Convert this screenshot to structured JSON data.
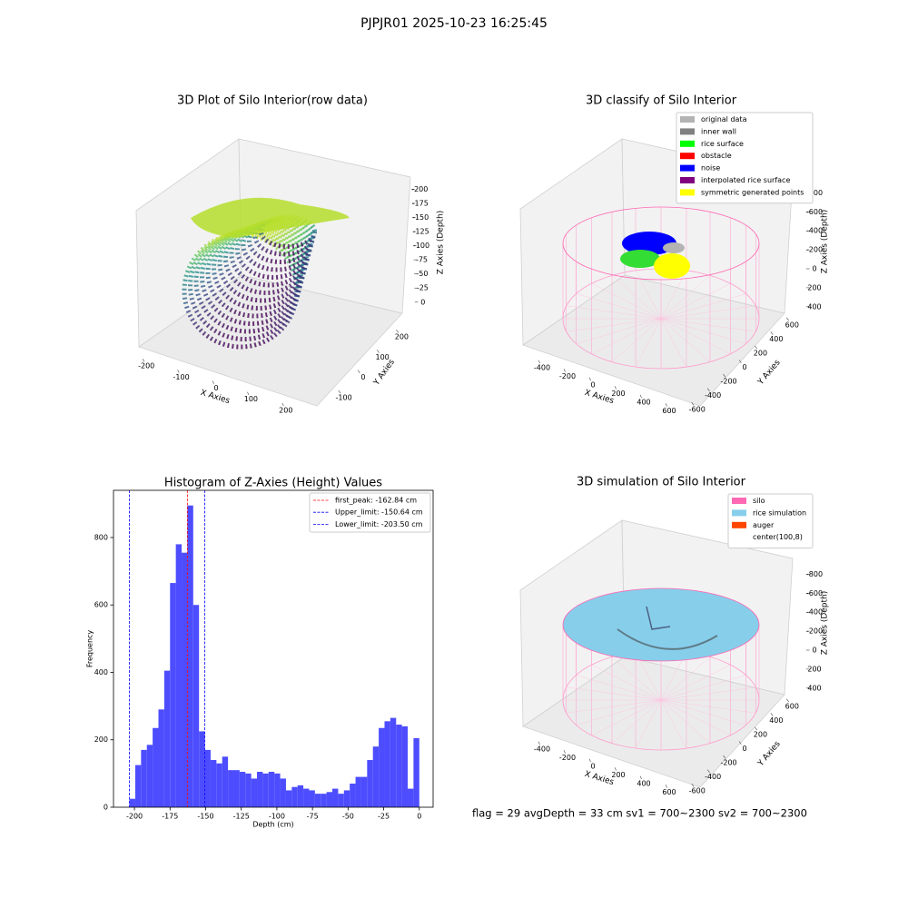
{
  "title": "PJPJR01 2025-10-23 16:25:45",
  "caption": "flag = 29  avgDepth = 33 cm    sv1 = 700~2300  sv2 = 700~2300",
  "chart_data": [
    {
      "type": "scatter3d",
      "title": "3D Plot of Silo Interior(row data)",
      "xlabel": "X Axies",
      "ylabel": "Y Axies",
      "zlabel": "Z Axies (Depth)",
      "xlim": [
        -250,
        250
      ],
      "xticks": [
        -200,
        -100,
        0,
        100,
        200
      ],
      "ylim": [
        -150,
        250
      ],
      "yticks": [
        -100,
        0,
        100,
        200
      ],
      "zlim": [
        -215,
        10
      ],
      "zticks": [
        0,
        -25,
        -50,
        -75,
        -100,
        -125,
        -150,
        -175,
        -200
      ]
    },
    {
      "type": "scatter3d",
      "title": "3D classify of Silo Interior",
      "xlabel": "X Axies",
      "ylabel": "Y Axies",
      "zlabel": "Z Axies (Depth)",
      "xlim": [
        -500,
        700
      ],
      "xticks": [
        -400,
        -200,
        0,
        200,
        400,
        600
      ],
      "ylim": [
        -700,
        700
      ],
      "yticks": [
        -600,
        -400,
        -200,
        0,
        200,
        400,
        600
      ],
      "zlim": [
        -900,
        450
      ],
      "zticks": [
        400,
        200,
        0,
        -200,
        -400,
        -600,
        -800
      ],
      "series": [
        {
          "name": "original data",
          "color": "#b3b3b3"
        },
        {
          "name": "inner wall",
          "color": "#808080"
        },
        {
          "name": "rice surface",
          "color": "#00ff00"
        },
        {
          "name": "obstacle",
          "color": "#ff0000"
        },
        {
          "name": "noise",
          "color": "#0000ff"
        },
        {
          "name": "interpolated rice surface",
          "color": "#800080"
        },
        {
          "name": "symmetric generated points",
          "color": "#ffff00"
        }
      ]
    },
    {
      "type": "histogram",
      "title": "Histogram of Z-Axies (Height) Values",
      "xlabel": "Depth (cm)",
      "ylabel": "Frequency",
      "color": "#4d4dff",
      "bins": [
        -203.5,
        -199.43,
        -195.36,
        -191.29,
        -187.22,
        -183.15,
        -179.08,
        -175.01,
        -170.94,
        -166.87,
        -162.8,
        -158.73,
        -154.66,
        -150.59,
        -146.52,
        -142.45,
        -138.38,
        -134.31,
        -130.24,
        -126.17,
        -122.1,
        -118.03,
        -113.96,
        -109.89,
        -105.82,
        -101.75,
        -97.68,
        -93.61,
        -89.54,
        -85.47,
        -81.4,
        -77.33,
        -73.26,
        -69.19,
        -65.12,
        -61.05,
        -56.98,
        -52.91,
        -48.84,
        -44.77,
        -40.7,
        -36.63,
        -32.56,
        -28.49,
        -24.42,
        -20.35,
        -16.28,
        -12.21,
        -8.14,
        -4.07,
        0
      ],
      "values": [
        25,
        125,
        170,
        185,
        235,
        290,
        405,
        665,
        780,
        755,
        895,
        600,
        225,
        170,
        140,
        130,
        150,
        110,
        110,
        105,
        100,
        85,
        105,
        100,
        105,
        100,
        85,
        50,
        60,
        65,
        55,
        50,
        40,
        40,
        45,
        55,
        40,
        50,
        70,
        90,
        90,
        140,
        180,
        235,
        255,
        265,
        245,
        240,
        55,
        205
      ],
      "xlim": [
        -214.7,
        9.7
      ],
      "xticks": [
        -200,
        -175,
        -150,
        -125,
        -100,
        -75,
        -50,
        -25,
        0
      ],
      "ylim": [
        0,
        940
      ],
      "yticks": [
        0,
        200,
        400,
        600,
        800
      ],
      "vlines": [
        {
          "label": "first_peak: -162.84 cm",
          "value": -162.84,
          "color": "#ff0000"
        },
        {
          "label": "Upper_limit: -150.64 cm",
          "value": -150.64,
          "color": "#0000ff"
        },
        {
          "label": "Lower_limit: -203.50 cm",
          "value": -203.5,
          "color": "#0000ff"
        }
      ]
    },
    {
      "type": "surface3d",
      "title": "3D simulation of Silo Interior",
      "xlabel": "X Axies",
      "ylabel": "Y Axies",
      "zlabel": "Z Axies (Depth)",
      "xlim": [
        -500,
        700
      ],
      "xticks": [
        -400,
        -200,
        0,
        200,
        400,
        600
      ],
      "ylim": [
        -700,
        700
      ],
      "yticks": [
        -600,
        -400,
        -200,
        0,
        200,
        400,
        600
      ],
      "zlim": [
        -900,
        450
      ],
      "zticks": [
        400,
        200,
        0,
        -200,
        -400,
        -600,
        -800
      ],
      "series": [
        {
          "name": "silo",
          "color": "#ff69b4"
        },
        {
          "name": "rice simulation",
          "color": "#87ceeb"
        },
        {
          "name": "auger",
          "color": "#ff4500"
        },
        {
          "name": "center(100,8)",
          "color": "#ffffff"
        }
      ]
    }
  ]
}
